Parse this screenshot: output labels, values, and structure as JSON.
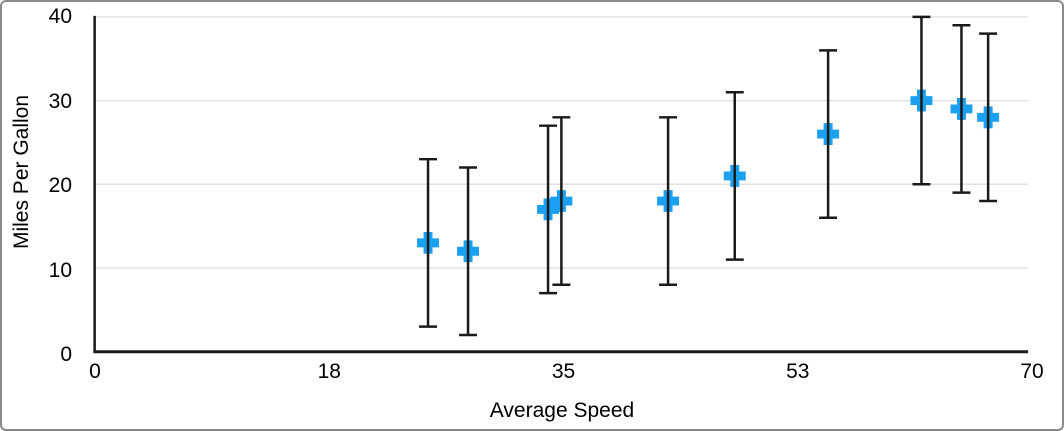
{
  "figure": {
    "background": "#ffffff",
    "border_color": "#8a8a8a"
  },
  "chart_data": {
    "type": "scatter",
    "title": "",
    "xlabel": "Average Speed",
    "ylabel": "Miles Per Gallon",
    "xlim": [
      0,
      70
    ],
    "ylim": [
      0,
      40
    ],
    "grid": "horizontal",
    "legend": "none",
    "gridline_color": "#e2e2e2",
    "axis_color": "#1a1a1a",
    "tick_label_color": "#000000",
    "x_ticks": [
      {
        "value": 0,
        "label": "0"
      },
      {
        "value": 17.5,
        "label": "18"
      },
      {
        "value": 35,
        "label": "35"
      },
      {
        "value": 52.5,
        "label": "53"
      },
      {
        "value": 70,
        "label": "70"
      }
    ],
    "y_ticks": [
      {
        "value": 0,
        "label": "0"
      },
      {
        "value": 10,
        "label": "10"
      },
      {
        "value": 20,
        "label": "20"
      },
      {
        "value": 30,
        "label": "30"
      },
      {
        "value": 40,
        "label": "40"
      }
    ],
    "series": [
      {
        "marker": "plus",
        "marker_color": "#1b9ff0",
        "error_bar_color": "#1a1a1a",
        "points": [
          {
            "x": 25,
            "y": 13,
            "y_error": 10
          },
          {
            "x": 28,
            "y": 12,
            "y_error": 10
          },
          {
            "x": 34,
            "y": 17,
            "y_error": 10
          },
          {
            "x": 35,
            "y": 18,
            "y_error": 10
          },
          {
            "x": 43,
            "y": 18,
            "y_error": 10
          },
          {
            "x": 48,
            "y": 21,
            "y_error": 10
          },
          {
            "x": 55,
            "y": 26,
            "y_error": 10
          },
          {
            "x": 62,
            "y": 30,
            "y_error": 10
          },
          {
            "x": 65,
            "y": 29,
            "y_error": 10
          },
          {
            "x": 67,
            "y": 28,
            "y_error": 10
          }
        ]
      }
    ]
  }
}
